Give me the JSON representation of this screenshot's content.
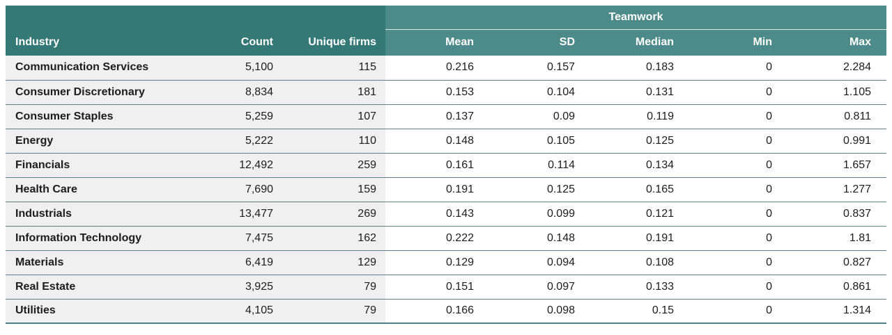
{
  "chart_data": {
    "type": "table",
    "group_header": {
      "label": "Teamwork",
      "span_columns": [
        "Mean",
        "SD",
        "Median",
        "Min",
        "Max"
      ]
    },
    "columns": [
      "Industry",
      "Count",
      "Unique firms",
      "Mean",
      "SD",
      "Median",
      "Min",
      "Max"
    ],
    "rows": [
      [
        "Communication Services",
        "5,100",
        "115",
        "0.216",
        "0.157",
        "0.183",
        "0",
        "2.284"
      ],
      [
        "Consumer Discretionary",
        "8,834",
        "181",
        "0.153",
        "0.104",
        "0.131",
        "0",
        "1.105"
      ],
      [
        "Consumer Staples",
        "5,259",
        "107",
        "0.137",
        "0.09",
        "0.119",
        "0",
        "0.811"
      ],
      [
        "Energy",
        "5,222",
        "110",
        "0.148",
        "0.105",
        "0.125",
        "0",
        "0.991"
      ],
      [
        "Financials",
        "12,492",
        "259",
        "0.161",
        "0.114",
        "0.134",
        "0",
        "1.657"
      ],
      [
        "Health Care",
        "7,690",
        "159",
        "0.191",
        "0.125",
        "0.165",
        "0",
        "1.277"
      ],
      [
        "Industrials",
        "13,477",
        "269",
        "0.143",
        "0.099",
        "0.121",
        "0",
        "0.837"
      ],
      [
        "Information Technology",
        "7,475",
        "162",
        "0.222",
        "0.148",
        "0.191",
        "0",
        "1.81"
      ],
      [
        "Materials",
        "6,419",
        "129",
        "0.129",
        "0.094",
        "0.108",
        "0",
        "0.827"
      ],
      [
        "Real Estate",
        "3,925",
        "79",
        "0.151",
        "0.097",
        "0.133",
        "0",
        "0.861"
      ],
      [
        "Utilities",
        "4,105",
        "79",
        "0.166",
        "0.098",
        "0.15",
        "0",
        "1.314"
      ]
    ]
  },
  "colors": {
    "header_dark_teal": "#357977",
    "header_light_teal": "#4d8b8a",
    "header_text": "#ffffff",
    "left_cell_bg": "#f0f0f0",
    "right_cell_bg": "#ffffff",
    "row_separator": "#5d7e86",
    "bottom_border": "#4f7e85",
    "body_text": "#1c1c1c"
  }
}
